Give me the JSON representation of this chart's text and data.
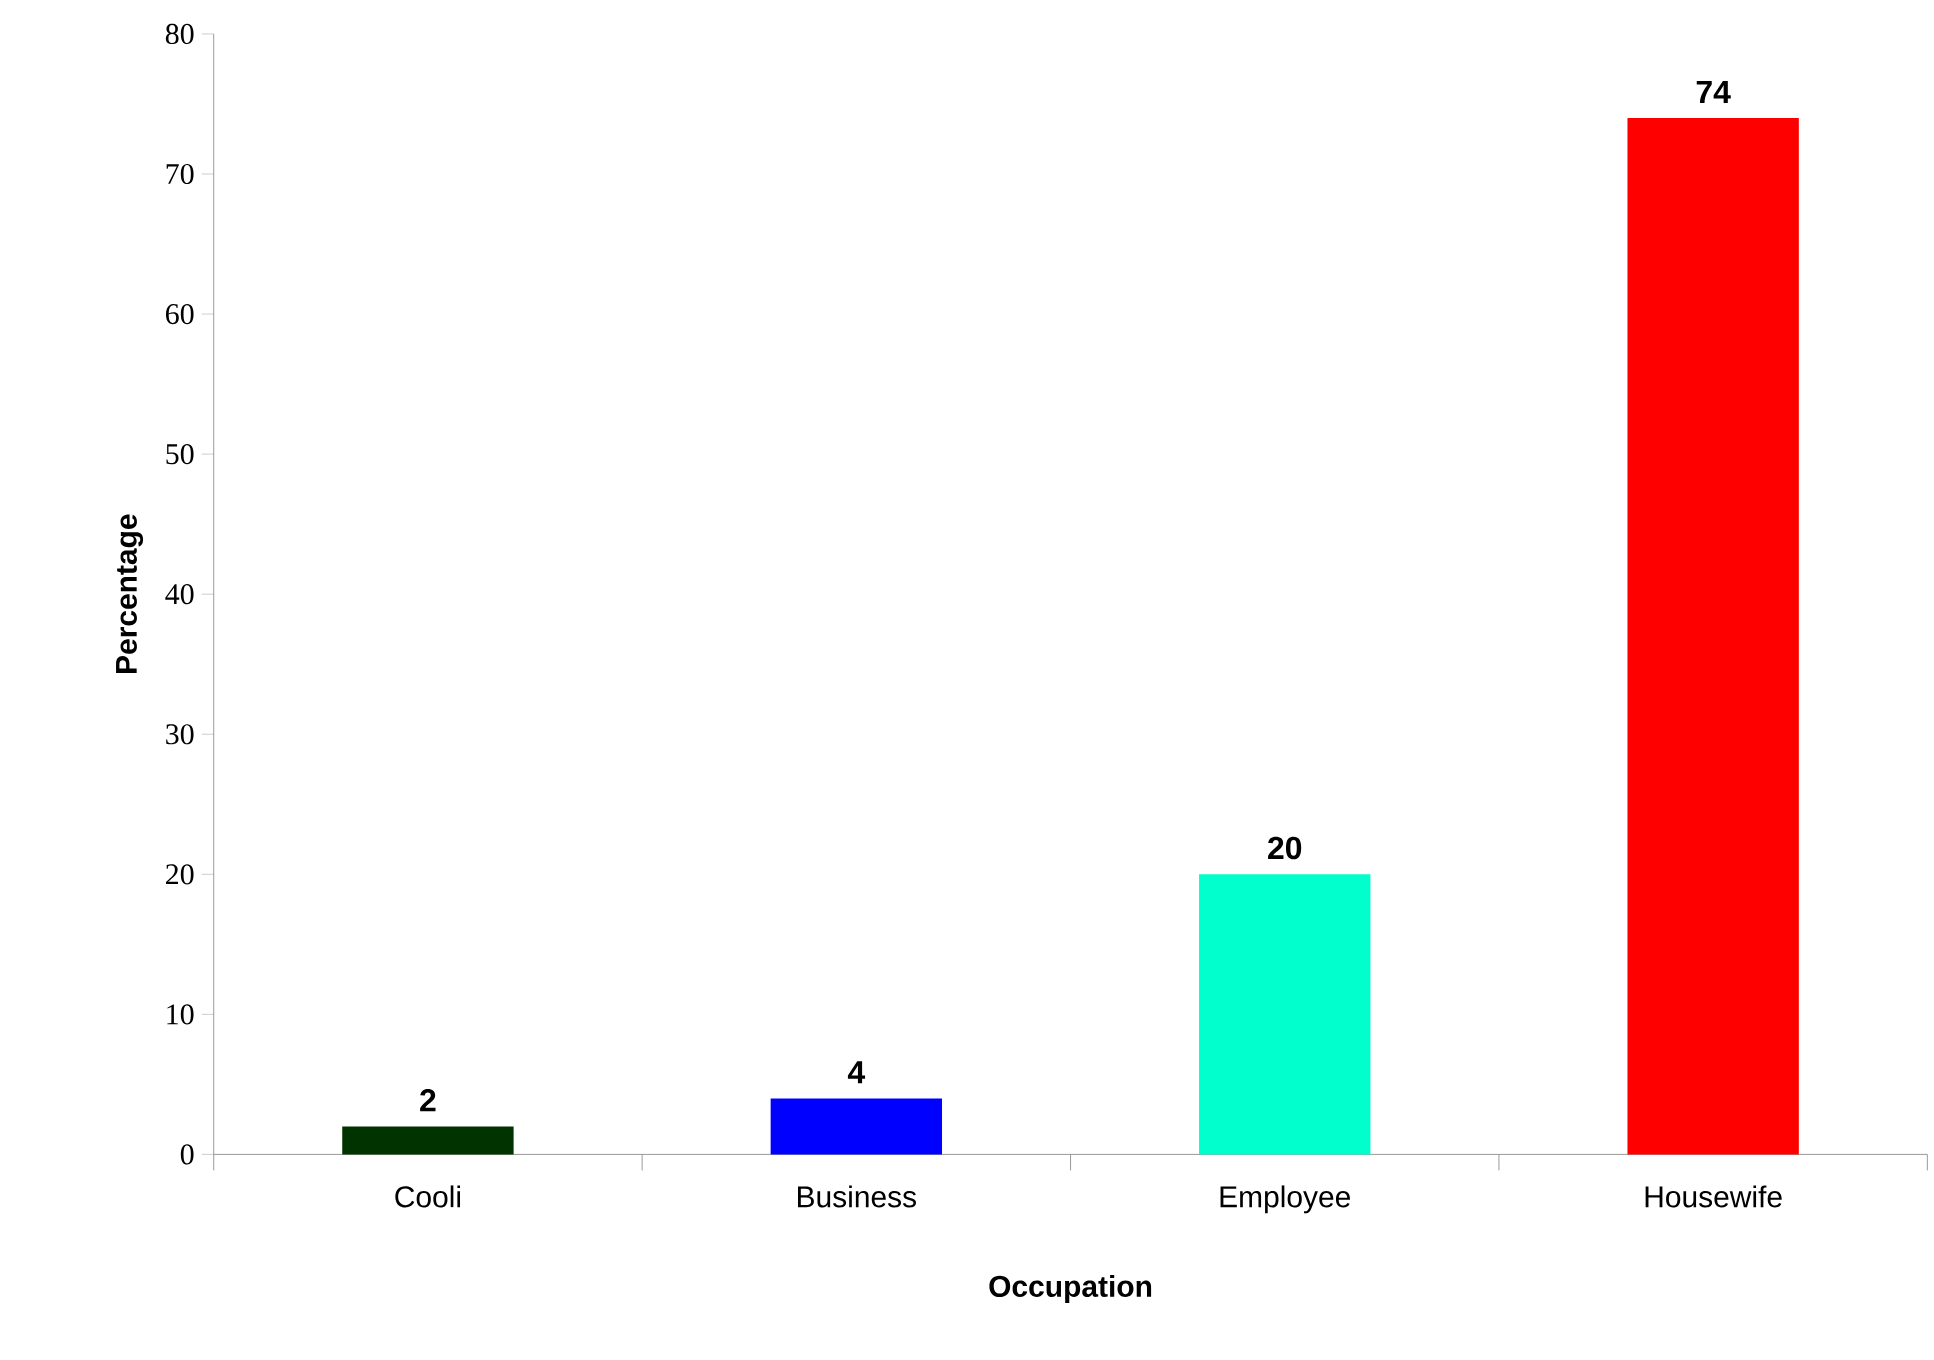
{
  "chart_data": {
    "type": "bar",
    "xlabel": "Occupation",
    "ylabel": "Percentage",
    "categories": [
      "Cooli",
      "Business",
      "Employee",
      "Housewife"
    ],
    "values": [
      2,
      4,
      20,
      74
    ],
    "colors": [
      "#003300",
      "#0000ff",
      "#00ffcc",
      "#ff0000"
    ],
    "ylim": [
      0,
      80
    ],
    "yticks": [
      0,
      10,
      20,
      30,
      40,
      50,
      60,
      70,
      80
    ],
    "data_labels": true
  }
}
